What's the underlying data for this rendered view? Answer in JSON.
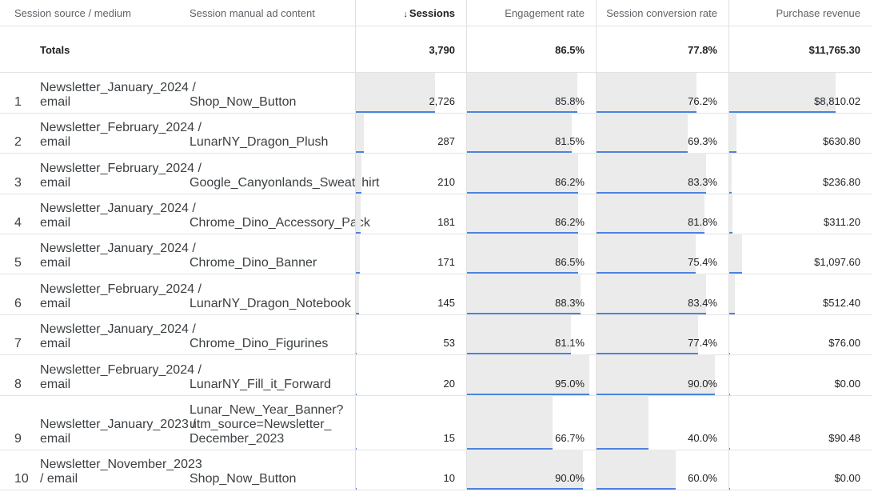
{
  "headers": {
    "source": "Session source / medium",
    "ad_content": "Session manual ad content",
    "sessions": "Sessions",
    "sessions_sort_icon": "↓",
    "engagement": "Engagement rate",
    "conversion": "Session conversion rate",
    "revenue": "Purchase revenue"
  },
  "totals": {
    "label": "Totals",
    "sessions": "3,790",
    "engagement": "86.5%",
    "conversion": "77.8%",
    "revenue": "$11,765.30"
  },
  "rows": [
    {
      "index": "1",
      "source_line1": "Newsletter_January_2024 /",
      "source_line2": "email",
      "ad_lines": [
        "Shop_Now_Button"
      ],
      "sessions": "2,726",
      "engagement": "85.8%",
      "conversion": "76.2%",
      "revenue": "$8,810.02",
      "sessions_frac": 0.7193,
      "engagement_frac": 0.858,
      "conversion_frac": 0.762,
      "revenue_frac": 0.7488
    },
    {
      "index": "2",
      "source_line1": "Newsletter_February_2024 /",
      "source_line2": "email",
      "ad_lines": [
        "LunarNY_Dragon_Plush"
      ],
      "sessions": "287",
      "engagement": "81.5%",
      "conversion": "69.3%",
      "revenue": "$630.80",
      "sessions_frac": 0.0757,
      "engagement_frac": 0.815,
      "conversion_frac": 0.693,
      "revenue_frac": 0.0536
    },
    {
      "index": "3",
      "source_line1": "Newsletter_February_2024 /",
      "source_line2": "email",
      "ad_lines": [
        "Google_Canyonlands_Sweatshirt"
      ],
      "sessions": "210",
      "engagement": "86.2%",
      "conversion": "83.3%",
      "revenue": "$236.80",
      "sessions_frac": 0.0554,
      "engagement_frac": 0.862,
      "conversion_frac": 0.833,
      "revenue_frac": 0.0201
    },
    {
      "index": "4",
      "source_line1": "Newsletter_January_2024 /",
      "source_line2": "email",
      "ad_lines": [
        "Chrome_Dino_Accessory_Pack"
      ],
      "sessions": "181",
      "engagement": "86.2%",
      "conversion": "81.8%",
      "revenue": "$311.20",
      "sessions_frac": 0.0478,
      "engagement_frac": 0.862,
      "conversion_frac": 0.818,
      "revenue_frac": 0.0265
    },
    {
      "index": "5",
      "source_line1": "Newsletter_January_2024 /",
      "source_line2": "email",
      "ad_lines": [
        "Chrome_Dino_Banner"
      ],
      "sessions": "171",
      "engagement": "86.5%",
      "conversion": "75.4%",
      "revenue": "$1,097.60",
      "sessions_frac": 0.0451,
      "engagement_frac": 0.865,
      "conversion_frac": 0.754,
      "revenue_frac": 0.0933
    },
    {
      "index": "6",
      "source_line1": "Newsletter_February_2024 /",
      "source_line2": "email",
      "ad_lines": [
        "LunarNY_Dragon_Notebook"
      ],
      "sessions": "145",
      "engagement": "88.3%",
      "conversion": "83.4%",
      "revenue": "$512.40",
      "sessions_frac": 0.0383,
      "engagement_frac": 0.883,
      "conversion_frac": 0.834,
      "revenue_frac": 0.0436
    },
    {
      "index": "7",
      "source_line1": "Newsletter_January_2024 /",
      "source_line2": "email",
      "ad_lines": [
        "Chrome_Dino_Figurines"
      ],
      "sessions": "53",
      "engagement": "81.1%",
      "conversion": "77.4%",
      "revenue": "$76.00",
      "sessions_frac": 0.014,
      "engagement_frac": 0.811,
      "conversion_frac": 0.774,
      "revenue_frac": 0.0065
    },
    {
      "index": "8",
      "source_line1": "Newsletter_February_2024 /",
      "source_line2": "email",
      "ad_lines": [
        "LunarNY_Fill_it_Forward"
      ],
      "sessions": "20",
      "engagement": "95.0%",
      "conversion": "90.0%",
      "revenue": "$0.00",
      "sessions_frac": 0.0053,
      "engagement_frac": 0.95,
      "conversion_frac": 0.9,
      "revenue_frac": 0.0
    },
    {
      "index": "9",
      "source_line1": "Newsletter_January_2023 /",
      "source_line2": "email",
      "ad_lines": [
        "Lunar_New_Year_Banner?",
        "utm_source=Newsletter_",
        "December_2023"
      ],
      "sessions": "15",
      "engagement": "66.7%",
      "conversion": "40.0%",
      "revenue": "$90.48",
      "sessions_frac": 0.004,
      "engagement_frac": 0.667,
      "conversion_frac": 0.4,
      "revenue_frac": 0.0077
    },
    {
      "index": "10",
      "source_line1": "Newsletter_November_2023",
      "source_line2": "/ email",
      "ad_lines": [
        "Shop_Now_Button"
      ],
      "sessions": "10",
      "engagement": "90.0%",
      "conversion": "60.0%",
      "revenue": "$0.00",
      "sessions_frac": 0.0026,
      "engagement_frac": 0.9,
      "conversion_frac": 0.6,
      "revenue_frac": 0.0
    }
  ],
  "colors": {
    "bar_fill": "#ebebeb",
    "bar_line": "#4d83dc",
    "grid": "#e3e3e3"
  }
}
